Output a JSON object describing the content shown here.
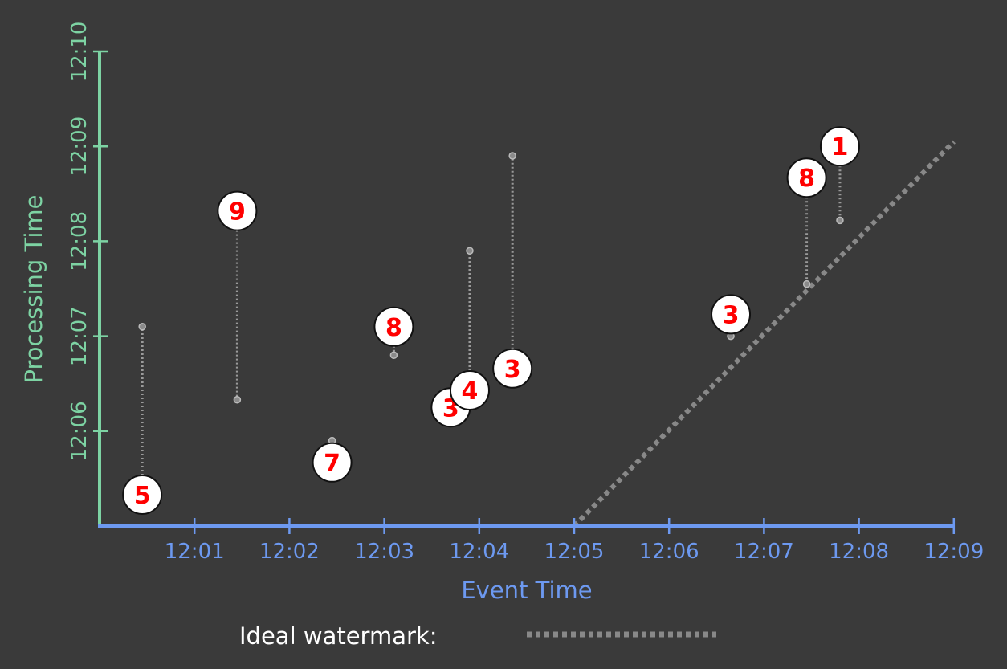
{
  "chart_data": {
    "type": "scatter",
    "xlabel": "Event Time",
    "ylabel": "Processing Time",
    "x_ticks": [
      "12:01",
      "12:02",
      "12:03",
      "12:04",
      "12:05",
      "12:06",
      "12:07",
      "12:08",
      "12:09"
    ],
    "y_ticks": [
      "12:06",
      "12:07",
      "12:08",
      "12:09",
      "12:10"
    ],
    "y_tick_minutes": [
      6,
      7,
      8,
      9,
      10
    ],
    "xlim_minutes": [
      0,
      9
    ],
    "ylim_minutes": [
      5,
      10
    ],
    "legend": {
      "label": "Ideal watermark:",
      "placement": "bottom-center"
    },
    "ideal_watermark": {
      "from": {
        "event_min": 5.0,
        "proc_min": 5.0
      },
      "to": {
        "event_min": 9.0,
        "proc_min": 9.05
      }
    },
    "points": [
      {
        "value": "5",
        "event_min": 0.45,
        "proc_min": 5.33,
        "orig_proc_min": 7.1
      },
      {
        "value": "9",
        "event_min": 1.45,
        "proc_min": 8.32,
        "orig_proc_min": 6.33
      },
      {
        "value": "7",
        "event_min": 2.45,
        "proc_min": 5.67,
        "orig_proc_min": 5.9
      },
      {
        "value": "8",
        "event_min": 3.1,
        "proc_min": 7.1,
        "orig_proc_min": 6.8
      },
      {
        "value": "3",
        "event_min": 3.7,
        "proc_min": 6.25,
        "orig_proc_min": null
      },
      {
        "value": "4",
        "event_min": 3.9,
        "proc_min": 6.43,
        "orig_proc_min": 7.9
      },
      {
        "value": "3",
        "event_min": 4.35,
        "proc_min": 6.66,
        "orig_proc_min": 8.9
      },
      {
        "value": "3",
        "event_min": 6.65,
        "proc_min": 7.23,
        "orig_proc_min": 7.0
      },
      {
        "value": "8",
        "event_min": 7.45,
        "proc_min": 8.67,
        "orig_proc_min": 7.55
      },
      {
        "value": "1",
        "event_min": 7.8,
        "proc_min": 9.0,
        "orig_proc_min": 8.22
      }
    ]
  },
  "colors": {
    "background": "#3a3a3a",
    "x_axis": "#6d99f0",
    "y_axis": "#7dd3a3",
    "label_red": "#ff0000",
    "marker_fill": "#ffffff",
    "dotted": "#9a9a9a",
    "watermark": "#888888",
    "legend_text": "#ffffff"
  }
}
